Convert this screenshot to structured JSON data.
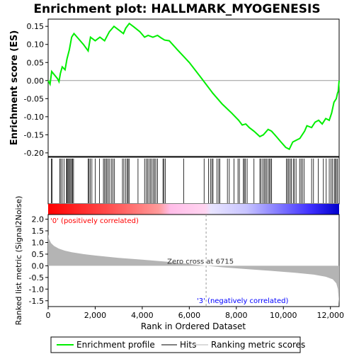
{
  "chart_data": {
    "type": "line",
    "title": "Enrichment plot: HALLMARK_MYOGENESIS",
    "colors": {
      "enrichment": "#00ee00",
      "hits": "#000000",
      "metric": "#b4b4b4",
      "positive": "#ff0000",
      "negative": "#0000ff",
      "zero_line": "#999999"
    },
    "es_panel": {
      "ylabel": "Enrichment score (ES)",
      "ylim": [
        -0.21,
        0.17
      ],
      "yticks": [
        {
          "v": 0.15,
          "label": "0.15"
        },
        {
          "v": 0.1,
          "label": "0.10"
        },
        {
          "v": 0.05,
          "label": "0.05"
        },
        {
          "v": 0.0,
          "label": "0.00"
        },
        {
          "v": -0.05,
          "label": "-0.05"
        },
        {
          "v": -0.1,
          "label": "-0.10"
        },
        {
          "v": -0.15,
          "label": "-0.15"
        },
        {
          "v": -0.2,
          "label": "-0.20"
        }
      ],
      "points": [
        [
          0,
          0.0
        ],
        [
          80,
          -0.01
        ],
        [
          150,
          0.025
        ],
        [
          400,
          0.005
        ],
        [
          460,
          -0.003
        ],
        [
          520,
          0.02
        ],
        [
          600,
          0.038
        ],
        [
          720,
          0.03
        ],
        [
          800,
          0.06
        ],
        [
          900,
          0.085
        ],
        [
          1000,
          0.12
        ],
        [
          1100,
          0.13
        ],
        [
          1300,
          0.115
        ],
        [
          1500,
          0.1
        ],
        [
          1700,
          0.082
        ],
        [
          1800,
          0.12
        ],
        [
          2000,
          0.11
        ],
        [
          2200,
          0.12
        ],
        [
          2400,
          0.11
        ],
        [
          2600,
          0.135
        ],
        [
          2800,
          0.15
        ],
        [
          3000,
          0.14
        ],
        [
          3200,
          0.13
        ],
        [
          3300,
          0.145
        ],
        [
          3450,
          0.158
        ],
        [
          3650,
          0.148
        ],
        [
          3900,
          0.135
        ],
        [
          4100,
          0.12
        ],
        [
          4250,
          0.125
        ],
        [
          4450,
          0.12
        ],
        [
          4650,
          0.125
        ],
        [
          4800,
          0.118
        ],
        [
          4950,
          0.112
        ],
        [
          5150,
          0.11
        ],
        [
          5500,
          0.085
        ],
        [
          6000,
          0.05
        ],
        [
          6500,
          0.008
        ],
        [
          7000,
          -0.035
        ],
        [
          7400,
          -0.065
        ],
        [
          7800,
          -0.09
        ],
        [
          8100,
          -0.11
        ],
        [
          8250,
          -0.123
        ],
        [
          8400,
          -0.12
        ],
        [
          8550,
          -0.13
        ],
        [
          8750,
          -0.14
        ],
        [
          9000,
          -0.155
        ],
        [
          9150,
          -0.15
        ],
        [
          9350,
          -0.135
        ],
        [
          9500,
          -0.14
        ],
        [
          9700,
          -0.155
        ],
        [
          9900,
          -0.17
        ],
        [
          10100,
          -0.185
        ],
        [
          10250,
          -0.19
        ],
        [
          10400,
          -0.17
        ],
        [
          10550,
          -0.165
        ],
        [
          10700,
          -0.16
        ],
        [
          10900,
          -0.14
        ],
        [
          11000,
          -0.125
        ],
        [
          11200,
          -0.13
        ],
        [
          11350,
          -0.115
        ],
        [
          11500,
          -0.11
        ],
        [
          11650,
          -0.12
        ],
        [
          11800,
          -0.105
        ],
        [
          11950,
          -0.11
        ],
        [
          12050,
          -0.09
        ],
        [
          12150,
          -0.06
        ],
        [
          12250,
          -0.05
        ],
        [
          12300,
          -0.035
        ],
        [
          12330,
          -0.03
        ],
        [
          12370,
          0.0
        ]
      ]
    },
    "hits_panel": {
      "hit_ranks": [
        140,
        170,
        490,
        540,
        600,
        680,
        780,
        800,
        840,
        870,
        920,
        960,
        1000,
        1040,
        1080,
        1700,
        1740,
        1790,
        1860,
        2000,
        2180,
        2350,
        2400,
        2460,
        2500,
        2560,
        2620,
        2700,
        2760,
        2820,
        3160,
        3220,
        3290,
        3360,
        3400,
        3440,
        3820,
        4100,
        4170,
        4230,
        4290,
        4350,
        4410,
        4470,
        4530,
        4580,
        4650,
        4880,
        4920,
        4980,
        5760,
        6630,
        6820,
        6900,
        6960,
        7010,
        7180,
        7250,
        7300,
        7620,
        7700,
        7900,
        8070,
        8130,
        8300,
        8340,
        8390,
        8460,
        8750,
        9000,
        9050,
        9120,
        9180,
        9230,
        9280,
        9350,
        9400,
        9450,
        9500,
        10130,
        10180,
        10230,
        10290,
        10340,
        10420,
        10470,
        10540,
        10690,
        10750,
        10810,
        10880,
        11200,
        11280,
        11480,
        11700,
        11820,
        11950,
        12020,
        12080,
        12160,
        12200,
        12250,
        12300
      ]
    },
    "metric_panel": {
      "ylabel": "Ranked list metric (Signal2Noise)",
      "ylim": [
        -1.75,
        2.2
      ],
      "yticks": [
        {
          "v": 2.0,
          "label": "2.0"
        },
        {
          "v": 1.5,
          "label": "1.5"
        },
        {
          "v": 1.0,
          "label": "1.0"
        },
        {
          "v": 0.5,
          "label": "0.5"
        },
        {
          "v": 0.0,
          "label": "0.0"
        },
        {
          "v": -0.5,
          "label": "-0.5"
        },
        {
          "v": -1.0,
          "label": "-1.0"
        },
        {
          "v": -1.5,
          "label": "-1.5"
        }
      ],
      "points": [
        [
          0,
          1.35
        ],
        [
          40,
          1.15
        ],
        [
          120,
          0.98
        ],
        [
          250,
          0.85
        ],
        [
          450,
          0.74
        ],
        [
          700,
          0.65
        ],
        [
          1000,
          0.58
        ],
        [
          1500,
          0.5
        ],
        [
          2000,
          0.44
        ],
        [
          3000,
          0.34
        ],
        [
          4000,
          0.26
        ],
        [
          5000,
          0.18
        ],
        [
          6000,
          0.08
        ],
        [
          6715,
          0.0
        ],
        [
          7500,
          -0.07
        ],
        [
          8500,
          -0.15
        ],
        [
          9500,
          -0.22
        ],
        [
          10500,
          -0.3
        ],
        [
          11300,
          -0.38
        ],
        [
          11800,
          -0.47
        ],
        [
          12100,
          -0.58
        ],
        [
          12250,
          -0.75
        ],
        [
          12320,
          -1.0
        ],
        [
          12370,
          -1.62
        ]
      ],
      "zero_cross_rank": 6715,
      "zero_cross_label": "Zero cross at 6715",
      "pos_label": "'0' (positively correlated)",
      "neg_label": "'3' (negatively correlated)"
    },
    "xlabel": "Rank in Ordered Dataset",
    "xlim": [
      0,
      12370
    ],
    "xticks": [
      {
        "v": 0,
        "label": "0"
      },
      {
        "v": 2000,
        "label": "2,000"
      },
      {
        "v": 4000,
        "label": "4,000"
      },
      {
        "v": 6000,
        "label": "6,000"
      },
      {
        "v": 8000,
        "label": "8,000"
      },
      {
        "v": 10000,
        "label": "10,000"
      },
      {
        "v": 12000,
        "label": "12,000"
      }
    ],
    "legend": {
      "placement": "bottom",
      "items": [
        {
          "key": "enrichment",
          "label": "Enrichment profile"
        },
        {
          "key": "hits",
          "label": "Hits"
        },
        {
          "key": "metric",
          "label": "Ranking metric scores"
        }
      ]
    }
  }
}
